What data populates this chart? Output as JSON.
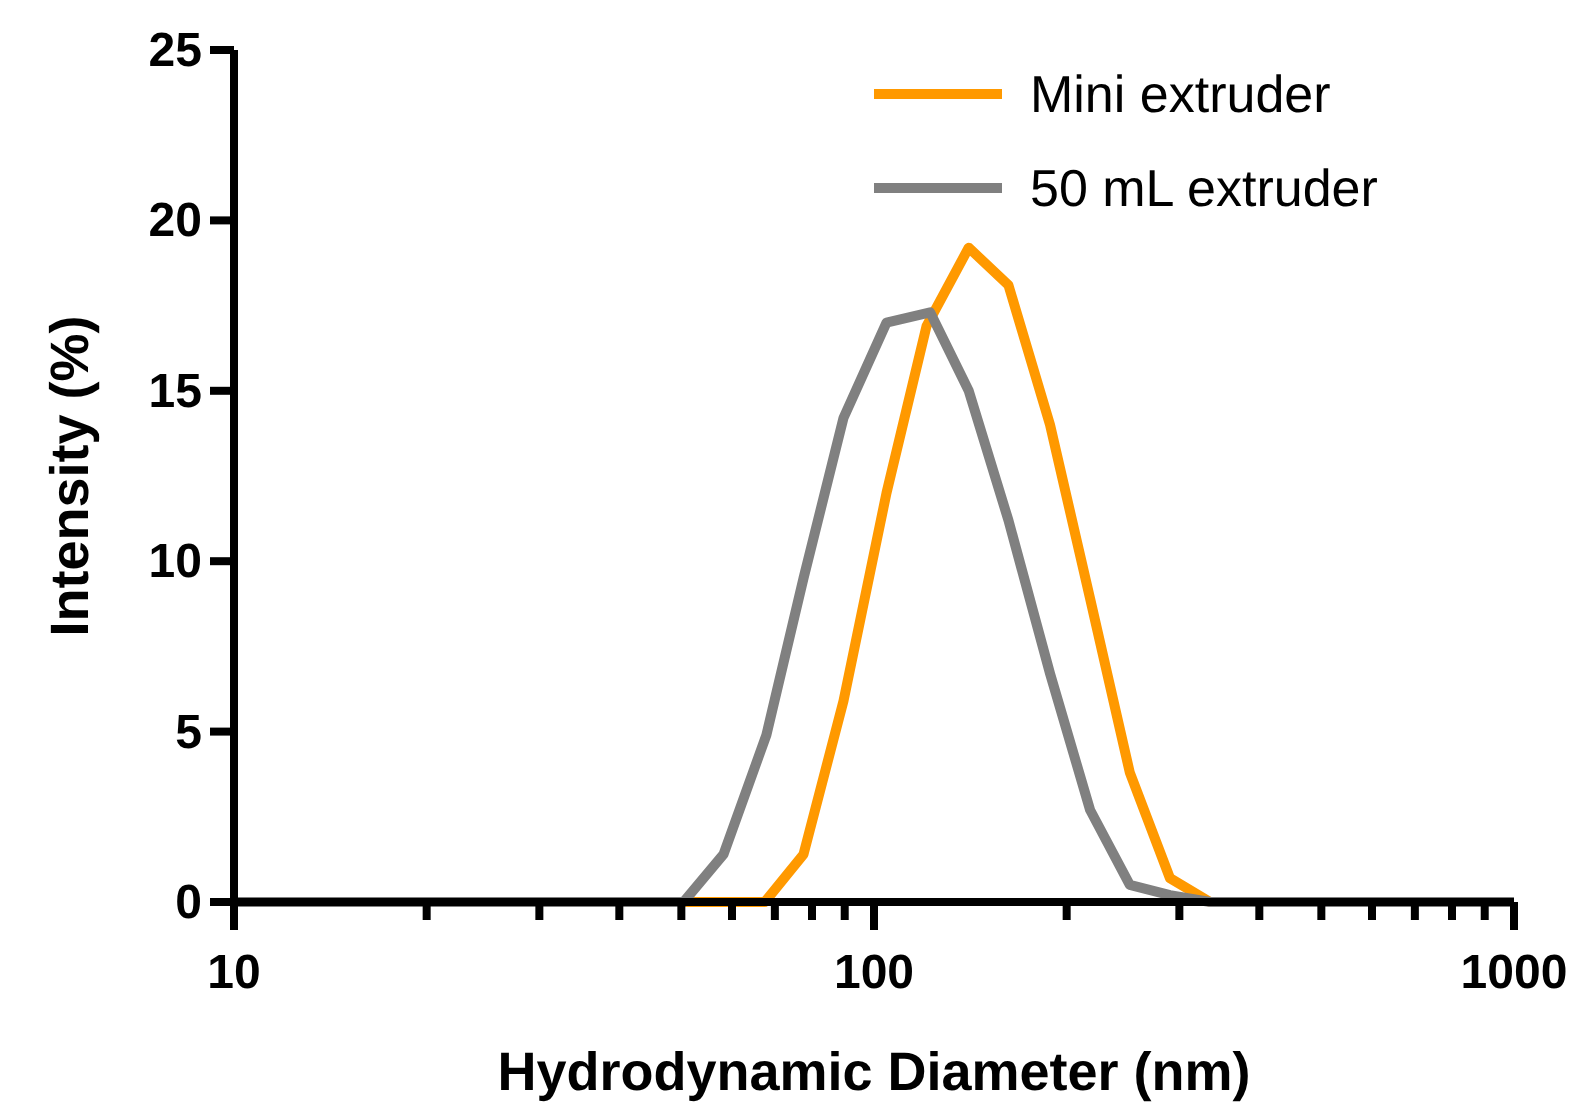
{
  "chart_data": {
    "type": "line",
    "xlabel": "Hydrodynamic Diameter (nm)",
    "ylabel": "Intensity (%)",
    "log": "x",
    "xlim": [
      10,
      1000
    ],
    "ylim": [
      0,
      25
    ],
    "xticks": [
      10,
      {
        "value": 20,
        "label": null
      },
      {
        "value": 30,
        "label": null
      },
      {
        "value": 40,
        "label": null
      },
      {
        "value": 50,
        "label": null
      },
      {
        "value": 60,
        "label": null
      },
      {
        "value": 70,
        "label": null
      },
      {
        "value": 80,
        "label": null
      },
      {
        "value": 90,
        "label": null
      },
      100,
      {
        "value": 200,
        "label": null
      },
      {
        "value": 300,
        "label": null
      },
      {
        "value": 400,
        "label": null
      },
      {
        "value": 500,
        "label": null
      },
      {
        "value": 600,
        "label": null
      },
      {
        "value": 700,
        "label": null
      },
      {
        "value": 800,
        "label": null
      },
      {
        "value": 900,
        "label": null
      },
      1000
    ],
    "yticks": [
      0,
      5,
      10,
      15,
      20,
      25
    ],
    "grid": false,
    "legend": "top right",
    "marker": "none",
    "line_style": "solid",
    "series": [
      {
        "name": "Mini extruder",
        "color": "#ff9900",
        "x": [
          10,
          67.5,
          77.6,
          89.6,
          104.6,
          120.8,
          140.6,
          162.2,
          188.4,
          217.6,
          251,
          290,
          335,
          1000
        ],
        "values": [
          0,
          0,
          1.4,
          5.9,
          12.0,
          16.9,
          19.2,
          18.1,
          14.0,
          8.9,
          3.8,
          0.7,
          0,
          0
        ]
      },
      {
        "name": "50 mL extruder",
        "color": "#808080",
        "x": [
          10,
          50.4,
          58.2,
          67.9,
          77.6,
          89.6,
          104.6,
          122.4,
          140.6,
          162.2,
          188.4,
          217.6,
          251,
          290,
          335,
          1000
        ],
        "values": [
          0,
          0,
          1.4,
          4.9,
          9.5,
          14.2,
          17.0,
          17.3,
          15.0,
          11.2,
          6.7,
          2.7,
          0.5,
          0.2,
          0,
          0
        ]
      }
    ]
  }
}
